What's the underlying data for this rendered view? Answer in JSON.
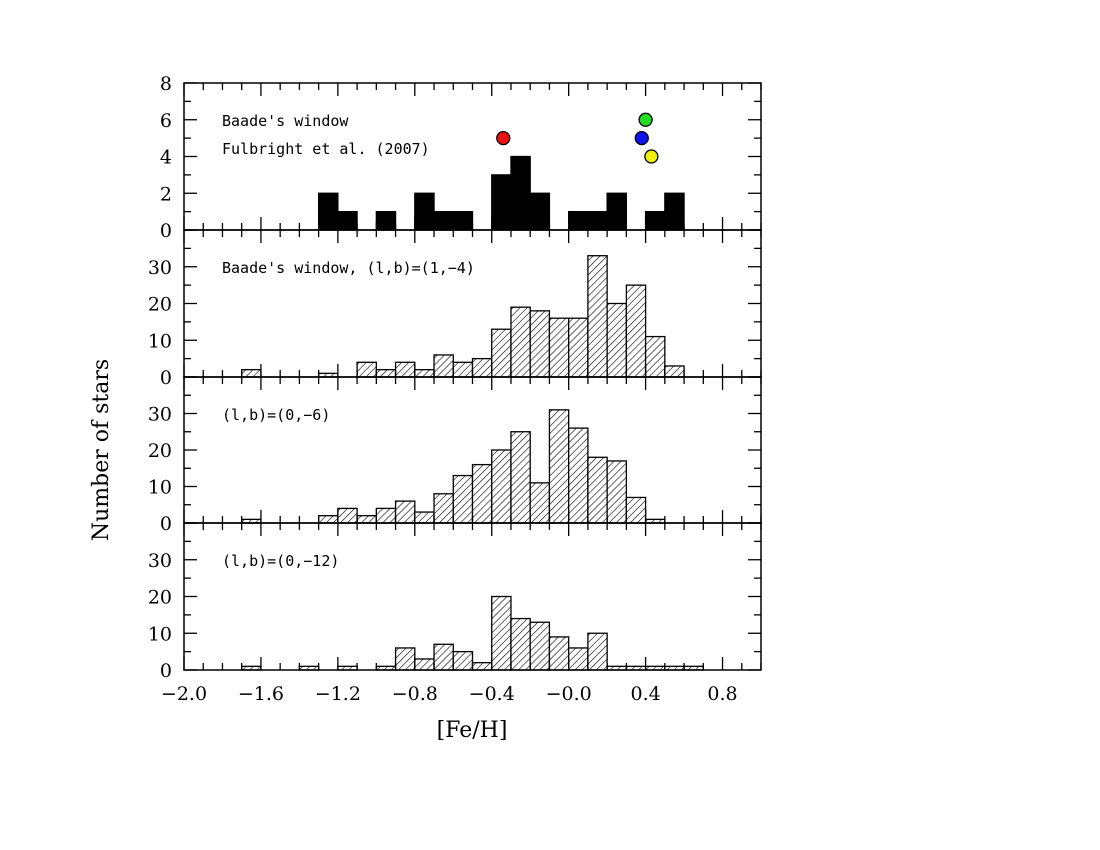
{
  "figure": {
    "xlabel": "[Fe/H]",
    "ylabel": "Number of stars"
  },
  "chart_data": [
    {
      "type": "bar",
      "style": "solid",
      "annotations": [
        "Baade's window",
        "Fulbright et al. (2007)"
      ],
      "xlim": [
        -2.0,
        1.0
      ],
      "ylim": [
        0,
        8
      ],
      "yticks": [
        0,
        2,
        4,
        6,
        8
      ],
      "bin_width": 0.1,
      "bins": [
        {
          "x": -1.3,
          "value": 2
        },
        {
          "x": -1.2,
          "value": 1
        },
        {
          "x": -1.0,
          "value": 1
        },
        {
          "x": -0.8,
          "value": 2
        },
        {
          "x": -0.7,
          "value": 1
        },
        {
          "x": -0.6,
          "value": 1
        },
        {
          "x": -0.4,
          "value": 3
        },
        {
          "x": -0.3,
          "value": 4
        },
        {
          "x": -0.2,
          "value": 2
        },
        {
          "x": 0.0,
          "value": 1
        },
        {
          "x": 0.1,
          "value": 1
        },
        {
          "x": 0.2,
          "value": 2
        },
        {
          "x": 0.4,
          "value": 1
        },
        {
          "x": 0.5,
          "value": 2
        }
      ],
      "points": [
        {
          "x": -0.34,
          "y": 5,
          "color": "#ee1111"
        },
        {
          "x": 0.4,
          "y": 6,
          "color": "#22dd22"
        },
        {
          "x": 0.38,
          "y": 5,
          "color": "#1111ee"
        },
        {
          "x": 0.43,
          "y": 4,
          "color": "#eeee11"
        }
      ]
    },
    {
      "type": "bar",
      "style": "hatched",
      "annotations": [
        "Baade's window, (l,b)=(1,−4)"
      ],
      "xlim": [
        -2.0,
        1.0
      ],
      "ylim": [
        0,
        40
      ],
      "yticks": [
        0,
        10,
        20,
        30
      ],
      "bin_width": 0.1,
      "bins": [
        {
          "x": -1.7,
          "value": 2
        },
        {
          "x": -1.3,
          "value": 1
        },
        {
          "x": -1.1,
          "value": 4
        },
        {
          "x": -1.0,
          "value": 2
        },
        {
          "x": -0.9,
          "value": 4
        },
        {
          "x": -0.8,
          "value": 2
        },
        {
          "x": -0.7,
          "value": 6
        },
        {
          "x": -0.6,
          "value": 4
        },
        {
          "x": -0.5,
          "value": 5
        },
        {
          "x": -0.4,
          "value": 13
        },
        {
          "x": -0.3,
          "value": 19
        },
        {
          "x": -0.2,
          "value": 18
        },
        {
          "x": -0.1,
          "value": 16
        },
        {
          "x": 0.0,
          "value": 16
        },
        {
          "x": 0.1,
          "value": 33
        },
        {
          "x": 0.2,
          "value": 20
        },
        {
          "x": 0.3,
          "value": 25
        },
        {
          "x": 0.4,
          "value": 11
        },
        {
          "x": 0.5,
          "value": 3
        }
      ]
    },
    {
      "type": "bar",
      "style": "hatched",
      "annotations": [
        "(l,b)=(0,−6)"
      ],
      "xlim": [
        -2.0,
        1.0
      ],
      "ylim": [
        0,
        40
      ],
      "yticks": [
        0,
        10,
        20,
        30
      ],
      "bin_width": 0.1,
      "bins": [
        {
          "x": -1.7,
          "value": 1
        },
        {
          "x": -1.3,
          "value": 2
        },
        {
          "x": -1.2,
          "value": 4
        },
        {
          "x": -1.1,
          "value": 2
        },
        {
          "x": -1.0,
          "value": 4
        },
        {
          "x": -0.9,
          "value": 6
        },
        {
          "x": -0.8,
          "value": 3
        },
        {
          "x": -0.7,
          "value": 8
        },
        {
          "x": -0.6,
          "value": 13
        },
        {
          "x": -0.5,
          "value": 16
        },
        {
          "x": -0.4,
          "value": 20
        },
        {
          "x": -0.3,
          "value": 25
        },
        {
          "x": -0.2,
          "value": 11
        },
        {
          "x": -0.1,
          "value": 31
        },
        {
          "x": 0.0,
          "value": 26
        },
        {
          "x": 0.1,
          "value": 18
        },
        {
          "x": 0.2,
          "value": 17
        },
        {
          "x": 0.3,
          "value": 7
        },
        {
          "x": 0.4,
          "value": 1
        }
      ]
    },
    {
      "type": "bar",
      "style": "hatched",
      "annotations": [
        "(l,b)=(0,−12)"
      ],
      "xlim": [
        -2.0,
        1.0
      ],
      "ylim": [
        0,
        40
      ],
      "yticks": [
        0,
        10,
        20,
        30
      ],
      "xticks": [
        "−2.0",
        "−1.6",
        "−1.2",
        "−0.8",
        "−0.4",
        "−0.0",
        "0.4",
        "0.8"
      ],
      "xtick_values": [
        -2.0,
        -1.6,
        -1.2,
        -0.8,
        -0.4,
        0.0,
        0.4,
        0.8
      ],
      "bin_width": 0.1,
      "bins": [
        {
          "x": -1.7,
          "value": 1
        },
        {
          "x": -1.4,
          "value": 1
        },
        {
          "x": -1.2,
          "value": 1
        },
        {
          "x": -1.0,
          "value": 1
        },
        {
          "x": -0.9,
          "value": 6
        },
        {
          "x": -0.8,
          "value": 3
        },
        {
          "x": -0.7,
          "value": 7
        },
        {
          "x": -0.6,
          "value": 5
        },
        {
          "x": -0.5,
          "value": 2
        },
        {
          "x": -0.4,
          "value": 20
        },
        {
          "x": -0.3,
          "value": 14
        },
        {
          "x": -0.2,
          "value": 13
        },
        {
          "x": -0.1,
          "value": 9
        },
        {
          "x": 0.0,
          "value": 6
        },
        {
          "x": 0.1,
          "value": 10
        },
        {
          "x": 0.2,
          "value": 1
        },
        {
          "x": 0.3,
          "value": 1
        },
        {
          "x": 0.4,
          "value": 1
        },
        {
          "x": 0.5,
          "value": 1
        },
        {
          "x": 0.6,
          "value": 1
        }
      ]
    }
  ]
}
